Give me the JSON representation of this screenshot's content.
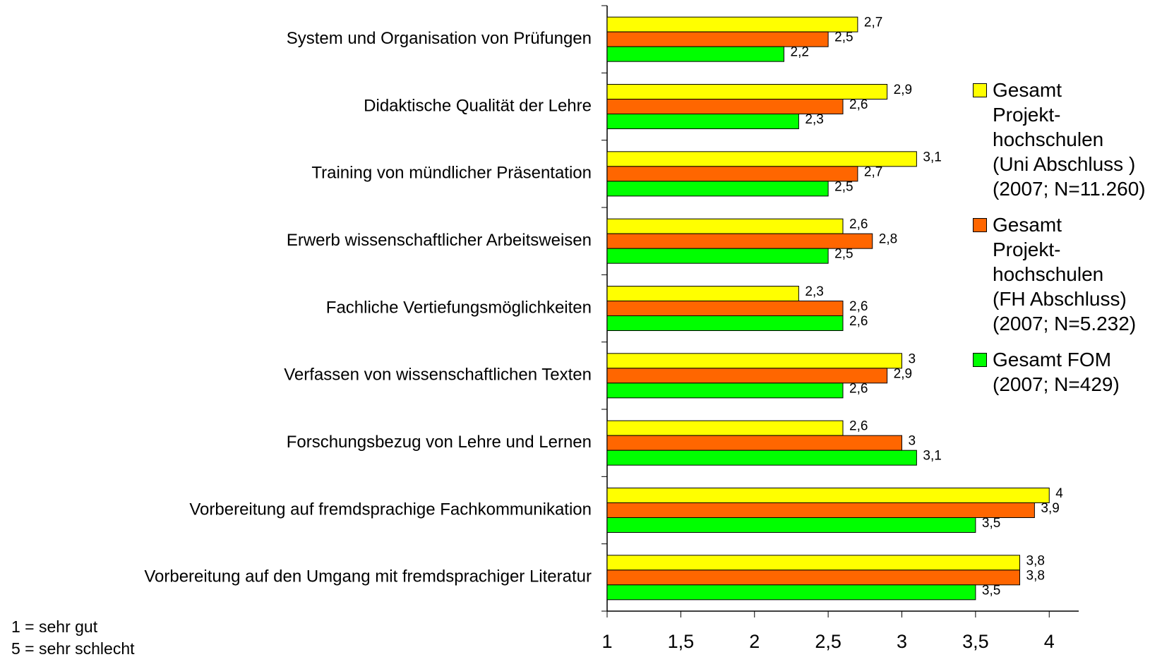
{
  "chart_data": {
    "type": "bar",
    "orientation": "horizontal",
    "categories": [
      "System und Organisation von Prüfungen",
      "Didaktische Qualität der Lehre",
      "Training von mündlicher Präsentation",
      "Erwerb wissenschaftlicher Arbeitsweisen",
      "Fachliche Vertiefungsmöglichkeiten",
      "Verfassen von wissenschaftlichen Texten",
      "Forschungsbezug von Lehre und Lernen",
      "Vorbereitung auf fremdsprachige Fachkommunikation",
      "Vorbereitung auf den Umgang mit fremdsprachiger Literatur"
    ],
    "series": [
      {
        "name": "Gesamt\nProjekt-\nhochschulen\n(Uni Abschluss )\n(2007; N=11.260)",
        "color": "#ffff00",
        "values": [
          2.7,
          2.9,
          3.1,
          2.6,
          2.3,
          3,
          2.6,
          4,
          3.8
        ],
        "value_labels": [
          "2,7",
          "2,9",
          "3,1",
          "2,6",
          "2,3",
          "3",
          "2,6",
          "4",
          "3,8"
        ]
      },
      {
        "name": "Gesamt\nProjekt-\nhochschulen\n(FH Abschluss)\n(2007; N=5.232)",
        "color": "#ff6600",
        "values": [
          2.5,
          2.6,
          2.7,
          2.8,
          2.6,
          2.9,
          3,
          3.9,
          3.8
        ],
        "value_labels": [
          "2,5",
          "2,6",
          "2,7",
          "2,8",
          "2,6",
          "2,9",
          "3",
          "3,9",
          "3,8"
        ]
      },
      {
        "name": "Gesamt FOM\n(2007; N=429)",
        "color": "#00ff00",
        "values": [
          2.2,
          2.3,
          2.5,
          2.5,
          2.6,
          2.6,
          3.1,
          3.5,
          3.5
        ],
        "value_labels": [
          "2,2",
          "2,3",
          "2,5",
          "2,5",
          "2,6",
          "2,6",
          "3,1",
          "3,5",
          "3,5"
        ]
      }
    ],
    "xlim": [
      1,
      4.2
    ],
    "xticks": [
      1,
      {
        "value": 1.5,
        "label": "1,5"
      },
      2,
      {
        "value": 2.5,
        "label": "2,5"
      },
      3,
      {
        "value": 3.5,
        "label": "3,5"
      },
      4
    ],
    "annotations": [
      "1 = sehr gut",
      "5 = sehr schlecht"
    ],
    "legend": "right"
  }
}
